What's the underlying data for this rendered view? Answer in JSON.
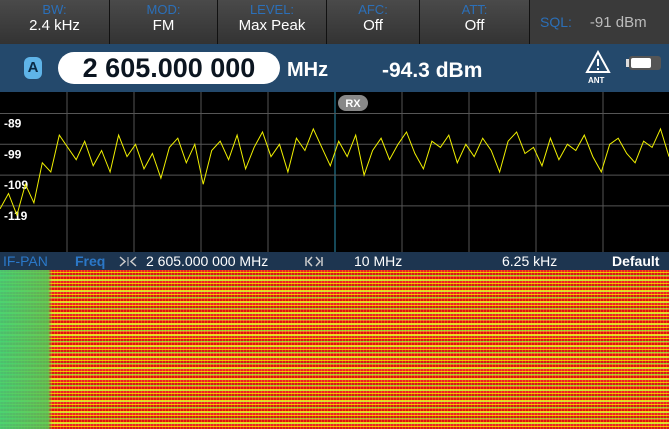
{
  "toolbar": [
    {
      "label": "BW:",
      "value": "2.4 kHz"
    },
    {
      "label": "MOD:",
      "value": "FM"
    },
    {
      "label": "LEVEL:",
      "value": "Max Peak"
    },
    {
      "label": "AFC:",
      "value": "Off"
    },
    {
      "label": "ATT:",
      "value": "Off"
    }
  ],
  "squelch": {
    "label": "SQL:",
    "value": "-91 dBm"
  },
  "status": {
    "channel": "A",
    "frequency": "2 605.000 000",
    "unit": "MHz",
    "level": "-94.3 dBm",
    "antenna": "ANT"
  },
  "spectrum": {
    "marker": "RX",
    "ylim": [
      -82,
      -134
    ],
    "yticks": [
      -89,
      -99,
      -109,
      -119
    ],
    "trace": [
      -120,
      -115,
      -122,
      -112,
      -118,
      -105,
      -108,
      -96,
      -100,
      -104,
      -98,
      -106,
      -101,
      -108,
      -96,
      -103,
      -99,
      -107,
      -102,
      -110,
      -100,
      -97,
      -105,
      -99,
      -112,
      -101,
      -98,
      -104,
      -96,
      -107,
      -100,
      -95,
      -103,
      -99,
      -108,
      -97,
      -101,
      -94,
      -100,
      -106,
      -98,
      -103,
      -96,
      -109,
      -101,
      -97,
      -104,
      -99,
      -95,
      -102,
      -107,
      -98,
      -100,
      -96,
      -105,
      -99,
      -103,
      -97,
      -101,
      -108,
      -98,
      -95,
      -102,
      -100,
      -106,
      -97,
      -104,
      -99,
      -101,
      -96,
      -103,
      -108,
      -99,
      -97,
      -102,
      -105,
      -98,
      -100,
      -94,
      -103
    ]
  },
  "footer": {
    "mode": "IF-PAN",
    "param": "Freq",
    "center": "2 605.000 000 MHz",
    "span": "10 MHz",
    "resolution": "6.25 kHz",
    "preset": "Default"
  }
}
